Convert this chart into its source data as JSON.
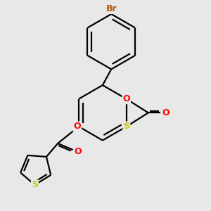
{
  "bg_color": "#e8e8e8",
  "bond_color": "#000000",
  "bond_width": 1.6,
  "atom_colors": {
    "Br": "#b85c00",
    "O": "#ff0000",
    "S": "#cccc00",
    "C": "#000000"
  },
  "font_size_atom": 9,
  "fig_size": [
    3.0,
    3.0
  ],
  "dpi": 100
}
